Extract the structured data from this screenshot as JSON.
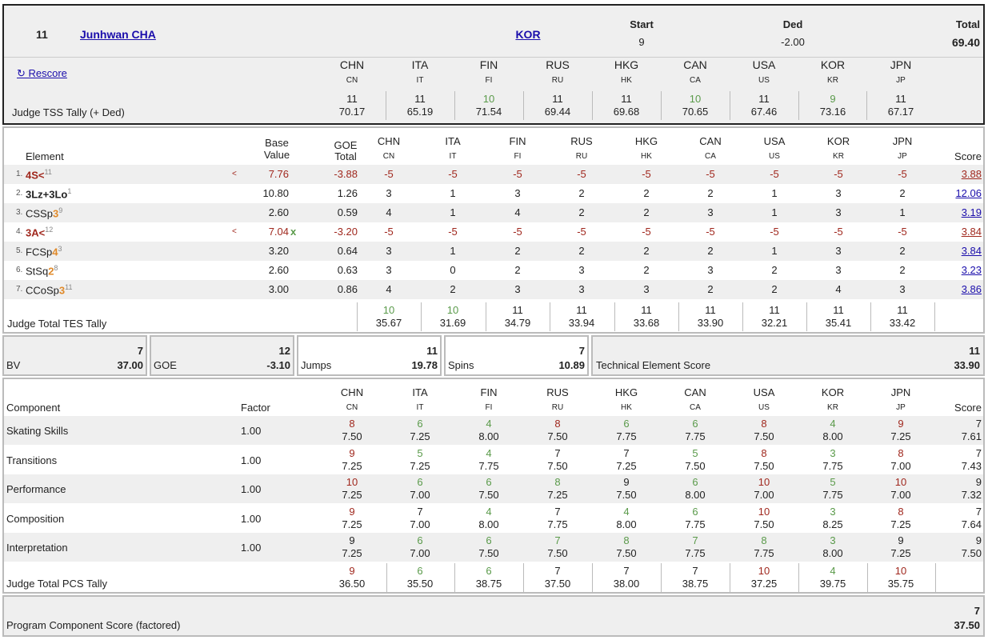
{
  "skater": {
    "rank": "11",
    "name": "Junhwan CHA",
    "nation": "KOR"
  },
  "start": {
    "label": "Start",
    "value": "9"
  },
  "ded": {
    "label": "Ded",
    "value": "-2.00"
  },
  "total": {
    "label": "Total",
    "value": "69.40"
  },
  "rescore_label": "↻ Rescore",
  "judges": [
    {
      "name": "CHN",
      "code": "CN"
    },
    {
      "name": "ITA",
      "code": "IT"
    },
    {
      "name": "FIN",
      "code": "FI"
    },
    {
      "name": "RUS",
      "code": "RU"
    },
    {
      "name": "HKG",
      "code": "HK"
    },
    {
      "name": "CAN",
      "code": "CA"
    },
    {
      "name": "USA",
      "code": "US"
    },
    {
      "name": "KOR",
      "code": "KR"
    },
    {
      "name": "JPN",
      "code": "JP"
    }
  ],
  "tss_tally": {
    "label": "Judge TSS Tally (+ Ded)",
    "items": [
      {
        "rank": "11",
        "value": "70.17",
        "color": "dark"
      },
      {
        "rank": "11",
        "value": "65.19",
        "color": "dark"
      },
      {
        "rank": "10",
        "value": "71.54",
        "color": "green"
      },
      {
        "rank": "11",
        "value": "69.44",
        "color": "dark"
      },
      {
        "rank": "11",
        "value": "69.68",
        "color": "dark"
      },
      {
        "rank": "10",
        "value": "70.65",
        "color": "green"
      },
      {
        "rank": "11",
        "value": "67.46",
        "color": "dark"
      },
      {
        "rank": "9",
        "value": "73.16",
        "color": "green"
      },
      {
        "rank": "11",
        "value": "67.17",
        "color": "dark"
      }
    ]
  },
  "elements_header": {
    "element": "Element",
    "base1": "Base",
    "base2": "Value",
    "goe1": "GOE",
    "goe2": "Total",
    "score": "Score"
  },
  "elements": [
    {
      "num": "1.",
      "name": "4S<",
      "level": "",
      "sup": "11",
      "name_color": "red",
      "flag": "<",
      "base": "7.76",
      "base_color": "red",
      "x": "",
      "goe": "-3.88",
      "goe_color": "red",
      "marks": [
        "-5",
        "-5",
        "-5",
        "-5",
        "-5",
        "-5",
        "-5",
        "-5",
        "-5"
      ],
      "marks_color": "red",
      "score": "3.88",
      "score_color": "red"
    },
    {
      "num": "2.",
      "name": "3Lz+3Lo",
      "level": "",
      "sup": "1",
      "name_color": "bold",
      "flag": "",
      "base": "10.80",
      "base_color": "dark",
      "x": "",
      "goe": "1.26",
      "goe_color": "dark",
      "marks": [
        "3",
        "1",
        "3",
        "2",
        "2",
        "2",
        "1",
        "3",
        "2"
      ],
      "marks_color": "dark",
      "score": "12.06",
      "score_color": "blue"
    },
    {
      "num": "3.",
      "name": "CSSp",
      "level": "3",
      "sup": "9",
      "name_color": "plain",
      "flag": "",
      "base": "2.60",
      "base_color": "dark",
      "x": "",
      "goe": "0.59",
      "goe_color": "dark",
      "marks": [
        "4",
        "1",
        "4",
        "2",
        "2",
        "3",
        "1",
        "3",
        "1"
      ],
      "marks_color": "dark",
      "score": "3.19",
      "score_color": "blue"
    },
    {
      "num": "4.",
      "name": "3A<",
      "level": "",
      "sup": "12",
      "name_color": "red",
      "flag": "<",
      "base": "7.04",
      "base_color": "red",
      "x": "x",
      "goe": "-3.20",
      "goe_color": "red",
      "marks": [
        "-5",
        "-5",
        "-5",
        "-5",
        "-5",
        "-5",
        "-5",
        "-5",
        "-5"
      ],
      "marks_color": "red",
      "score": "3.84",
      "score_color": "red"
    },
    {
      "num": "5.",
      "name": "FCSp",
      "level": "4",
      "sup": "3",
      "name_color": "plain",
      "flag": "",
      "base": "3.20",
      "base_color": "dark",
      "x": "",
      "goe": "0.64",
      "goe_color": "dark",
      "marks": [
        "3",
        "1",
        "2",
        "2",
        "2",
        "2",
        "1",
        "3",
        "2"
      ],
      "marks_color": "dark",
      "score": "3.84",
      "score_color": "blue"
    },
    {
      "num": "6.",
      "name": "StSq",
      "level": "2",
      "sup": "8",
      "name_color": "plain",
      "flag": "",
      "base": "2.60",
      "base_color": "dark",
      "x": "",
      "goe": "0.63",
      "goe_color": "dark",
      "marks": [
        "3",
        "0",
        "2",
        "3",
        "2",
        "3",
        "2",
        "3",
        "2"
      ],
      "marks_color": "dark",
      "score": "3.23",
      "score_color": "blue"
    },
    {
      "num": "7.",
      "name": "CCoSp",
      "level": "3",
      "sup": "11",
      "name_color": "plain",
      "flag": "",
      "base": "3.00",
      "base_color": "dark",
      "x": "",
      "goe": "0.86",
      "goe_color": "dark",
      "marks": [
        "4",
        "2",
        "3",
        "3",
        "3",
        "2",
        "2",
        "4",
        "3"
      ],
      "marks_color": "dark",
      "score": "3.86",
      "score_color": "blue"
    }
  ],
  "tes_tally": {
    "label": "Judge Total TES Tally",
    "items": [
      {
        "rank": "10",
        "value": "35.67",
        "color": "green"
      },
      {
        "rank": "10",
        "value": "31.69",
        "color": "green"
      },
      {
        "rank": "11",
        "value": "34.79",
        "color": "dark"
      },
      {
        "rank": "11",
        "value": "33.94",
        "color": "dark"
      },
      {
        "rank": "11",
        "value": "33.68",
        "color": "dark"
      },
      {
        "rank": "11",
        "value": "33.90",
        "color": "dark"
      },
      {
        "rank": "11",
        "value": "32.21",
        "color": "dark"
      },
      {
        "rank": "11",
        "value": "35.41",
        "color": "dark"
      },
      {
        "rank": "11",
        "value": "33.42",
        "color": "dark"
      }
    ]
  },
  "summary": {
    "bv": {
      "label": "BV",
      "rank": "7",
      "value": "37.00"
    },
    "goe": {
      "label": "GOE",
      "rank": "12",
      "value": "-3.10"
    },
    "jumps": {
      "label": "Jumps",
      "rank": "11",
      "value": "19.78"
    },
    "spins": {
      "label": "Spins",
      "rank": "7",
      "value": "10.89"
    },
    "tes": {
      "label": "Technical Element Score",
      "rank": "11",
      "value": "33.90"
    }
  },
  "pcs_header": {
    "component": "Component",
    "factor": "Factor",
    "score": "Score"
  },
  "components": [
    {
      "name": "Skating Skills",
      "factor": "1.00",
      "marks": [
        [
          "8",
          "7.50",
          "red"
        ],
        [
          "6",
          "7.25",
          "green"
        ],
        [
          "4",
          "8.00",
          "green"
        ],
        [
          "8",
          "7.50",
          "red"
        ],
        [
          "6",
          "7.75",
          "green"
        ],
        [
          "6",
          "7.75",
          "green"
        ],
        [
          "8",
          "7.50",
          "red"
        ],
        [
          "4",
          "8.00",
          "green"
        ],
        [
          "9",
          "7.25",
          "red"
        ]
      ],
      "rank": "7",
      "score": "7.61"
    },
    {
      "name": "Transitions",
      "factor": "1.00",
      "marks": [
        [
          "9",
          "7.25",
          "red"
        ],
        [
          "5",
          "7.25",
          "green"
        ],
        [
          "4",
          "7.75",
          "green"
        ],
        [
          "7",
          "7.50",
          "dark"
        ],
        [
          "7",
          "7.25",
          "dark"
        ],
        [
          "5",
          "7.50",
          "green"
        ],
        [
          "8",
          "7.50",
          "red"
        ],
        [
          "3",
          "7.75",
          "green"
        ],
        [
          "8",
          "7.00",
          "red"
        ]
      ],
      "rank": "7",
      "score": "7.43"
    },
    {
      "name": "Performance",
      "factor": "1.00",
      "marks": [
        [
          "10",
          "7.25",
          "red"
        ],
        [
          "6",
          "7.00",
          "green"
        ],
        [
          "6",
          "7.50",
          "green"
        ],
        [
          "8",
          "7.25",
          "green"
        ],
        [
          "9",
          "7.50",
          "dark"
        ],
        [
          "6",
          "8.00",
          "green"
        ],
        [
          "10",
          "7.00",
          "red"
        ],
        [
          "5",
          "7.75",
          "green"
        ],
        [
          "10",
          "7.00",
          "red"
        ]
      ],
      "rank": "9",
      "score": "7.32"
    },
    {
      "name": "Composition",
      "factor": "1.00",
      "marks": [
        [
          "9",
          "7.25",
          "red"
        ],
        [
          "7",
          "7.00",
          "dark"
        ],
        [
          "4",
          "8.00",
          "green"
        ],
        [
          "7",
          "7.75",
          "dark"
        ],
        [
          "4",
          "8.00",
          "green"
        ],
        [
          "6",
          "7.75",
          "green"
        ],
        [
          "10",
          "7.50",
          "red"
        ],
        [
          "3",
          "8.25",
          "green"
        ],
        [
          "8",
          "7.25",
          "red"
        ]
      ],
      "rank": "7",
      "score": "7.64"
    },
    {
      "name": "Interpretation",
      "factor": "1.00",
      "marks": [
        [
          "9",
          "7.25",
          "dark"
        ],
        [
          "6",
          "7.00",
          "green"
        ],
        [
          "6",
          "7.50",
          "green"
        ],
        [
          "7",
          "7.50",
          "green"
        ],
        [
          "8",
          "7.50",
          "green"
        ],
        [
          "7",
          "7.75",
          "green"
        ],
        [
          "8",
          "7.75",
          "green"
        ],
        [
          "3",
          "8.00",
          "green"
        ],
        [
          "9",
          "7.25",
          "dark"
        ]
      ],
      "rank": "9",
      "score": "7.50"
    }
  ],
  "pcs_tally": {
    "label": "Judge Total PCS Tally",
    "items": [
      {
        "rank": "9",
        "value": "36.50",
        "color": "red"
      },
      {
        "rank": "6",
        "value": "35.50",
        "color": "green"
      },
      {
        "rank": "6",
        "value": "38.75",
        "color": "green"
      },
      {
        "rank": "7",
        "value": "37.50",
        "color": "dark"
      },
      {
        "rank": "7",
        "value": "38.00",
        "color": "dark"
      },
      {
        "rank": "7",
        "value": "38.75",
        "color": "dark"
      },
      {
        "rank": "10",
        "value": "37.25",
        "color": "red"
      },
      {
        "rank": "4",
        "value": "39.75",
        "color": "green"
      },
      {
        "rank": "10",
        "value": "35.75",
        "color": "red"
      }
    ]
  },
  "pcs_total": {
    "label": "Program Component Score (factored)",
    "rank": "7",
    "value": "37.50"
  }
}
